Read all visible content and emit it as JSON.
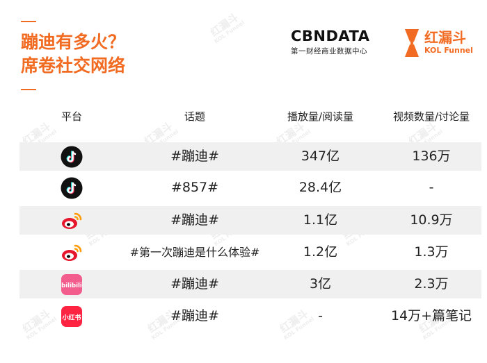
{
  "header": {
    "title_line1": "蹦迪有多火？",
    "title_line2": "席卷社交网络"
  },
  "logos": {
    "cbn_name": "CBNDATA",
    "cbn_subtitle": "第一财经商业数据中心",
    "kol_name": "红漏斗",
    "kol_english": "KOL Funnel"
  },
  "watermark": {
    "text": "红漏斗",
    "sub": "KOL Funnel"
  },
  "table": {
    "headers": [
      "平台",
      "话题",
      "播放量/阅读量",
      "视频数量/讨论量"
    ],
    "rows": [
      {
        "platform_icon": "douyin-icon",
        "topic": "#蹦迪#",
        "views": "347亿",
        "count": "136万"
      },
      {
        "platform_icon": "douyin-icon",
        "topic": "#857#",
        "views": "28.4亿",
        "count": "-"
      },
      {
        "platform_icon": "weibo-icon",
        "topic": "#蹦迪#",
        "views": "1.1亿",
        "count": "10.9万"
      },
      {
        "platform_icon": "weibo-icon",
        "topic": "#第一次蹦迪是什么体验#",
        "views": "1.2亿",
        "count": "1.3万"
      },
      {
        "platform_icon": "bilibili-icon",
        "topic": "#蹦迪#",
        "views": "3亿",
        "count": "2.3万"
      },
      {
        "platform_icon": "xiaohongshu-icon",
        "topic": "#蹦迪#",
        "views": "-",
        "count": "14万+篇笔记"
      }
    ]
  },
  "icon_labels": {
    "bilibili": "bilibili",
    "xiaohongshu": "小红书"
  },
  "colors": {
    "accent": "#f26b22",
    "row_shade": "#f0f0f0",
    "douyin": "#111111",
    "weibo": "#e6162d",
    "bilibili": "#f25d8e",
    "xiaohongshu": "#ff2442"
  }
}
